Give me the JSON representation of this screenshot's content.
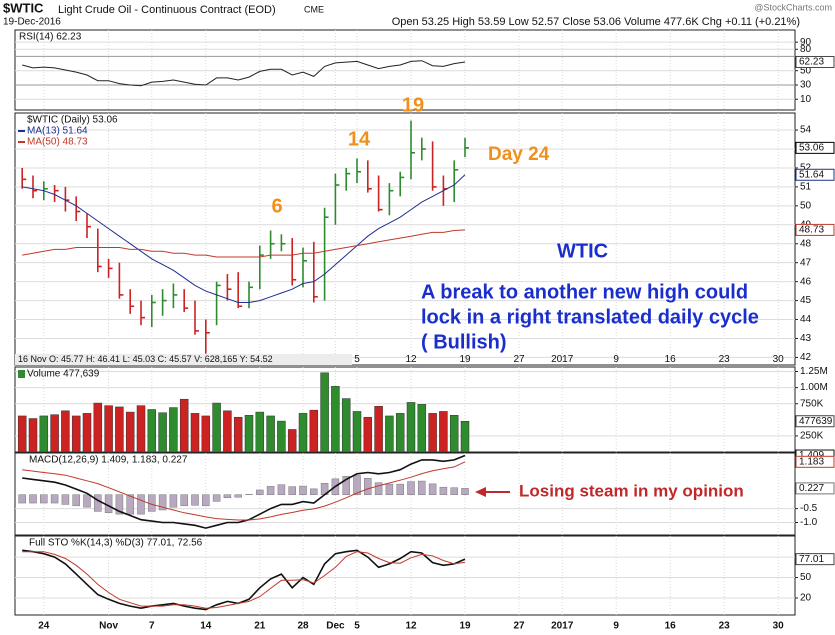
{
  "header": {
    "symbol": "$WTIC",
    "name": "Light Crude Oil - Continuous Contract (EOD)",
    "exchange": "CME",
    "date": "19-Dec-2016",
    "quote": "Open 53.25 High 53.59 Low 52.57 Close 53.06 Volume 477.6K Chg +0.11 (+0.21%)",
    "credit": "@StockCharts.com"
  },
  "x_axis": {
    "labels": [
      "24",
      "Nov",
      "7",
      "14",
      "21",
      "28",
      "Dec",
      "5",
      "12",
      "19",
      "27",
      "2017",
      "9",
      "16",
      "23",
      "30"
    ],
    "info": "16 Nov O: 45.77 H: 46.41 L: 45.03 C: 45.57 V: 628,165 Y: 54.52"
  },
  "annotations": {
    "cycle_19": "19",
    "cycle_14": "14",
    "cycle_6": "6",
    "day": "Day 24",
    "symbol": "WTIC",
    "comment": [
      "A break to another new high could",
      "lock in a right translated daily cycle",
      "( Bullish)"
    ],
    "macd_note": "Losing steam in my opinion"
  },
  "chart_data": [
    {
      "type": "line",
      "title": "RSI(14) 62.23",
      "color": "#222222",
      "values": [
        58,
        54,
        55,
        54,
        51,
        48,
        44,
        36,
        36,
        32,
        30,
        29,
        34,
        35,
        37,
        34,
        31,
        30,
        40,
        40,
        37,
        41,
        49,
        52,
        52,
        44,
        48,
        42,
        56,
        61,
        62,
        63,
        58,
        53,
        56,
        58,
        63,
        64,
        57,
        56,
        60,
        62.23
      ],
      "ylim": [
        -5,
        107
      ],
      "yticks": [
        10,
        30,
        50,
        80,
        90
      ],
      "grid": true
    },
    {
      "type": "ohlc",
      "title": "$WTIC (Daily) 53.06",
      "up_color": "#2e8b2e",
      "down_color": "#cc2222",
      "high": [
        52.0,
        51.6,
        51.3,
        51.1,
        51.0,
        50.5,
        49.6,
        48.8,
        47.2,
        47.0,
        45.6,
        45.0,
        45.3,
        45.6,
        45.9,
        45.6,
        45.0,
        44.0,
        46.0,
        46.4,
        46.5,
        46.0,
        47.9,
        48.7,
        48.5,
        48.3,
        47.8,
        48.1,
        49.9,
        51.7,
        52.0,
        52.5,
        52.4,
        51.6,
        51.2,
        51.8,
        54.5,
        53.6,
        53.4,
        51.6,
        52.4,
        53.59
      ],
      "low": [
        50.9,
        50.4,
        50.3,
        50.2,
        49.7,
        49.2,
        48.3,
        46.5,
        46.2,
        45.1,
        44.3,
        43.7,
        43.6,
        44.2,
        44.6,
        44.4,
        43.2,
        42.2,
        43.7,
        45.0,
        44.6,
        44.6,
        45.6,
        47.2,
        47.6,
        45.8,
        45.7,
        44.9,
        45.0,
        49.0,
        50.8,
        51.2,
        50.7,
        49.7,
        49.5,
        50.5,
        51.4,
        52.4,
        50.8,
        50.0,
        50.2,
        52.57
      ],
      "close": [
        51.4,
        50.8,
        50.9,
        50.8,
        50.3,
        49.7,
        48.9,
        46.8,
        46.7,
        45.3,
        44.7,
        44.1,
        44.9,
        45.0,
        45.3,
        44.6,
        43.4,
        43.3,
        45.8,
        45.6,
        44.7,
        45.7,
        47.4,
        48.0,
        48.0,
        46.1,
        47.1,
        45.2,
        49.4,
        51.1,
        51.7,
        51.8,
        50.9,
        49.8,
        50.8,
        51.5,
        52.8,
        53.0,
        51.0,
        50.9,
        51.9,
        53.06
      ],
      "series": [
        {
          "name": "MA(13) 51.64",
          "color": "#1f2f8f",
          "values": [
            51.0,
            50.9,
            50.8,
            50.6,
            50.3,
            50.0,
            49.6,
            49.2,
            48.8,
            48.4,
            48.0,
            47.6,
            47.2,
            46.9,
            46.6,
            46.2,
            45.8,
            45.5,
            45.3,
            45.1,
            44.9,
            44.9,
            45.0,
            45.2,
            45.4,
            45.6,
            45.9,
            46.0,
            46.4,
            46.9,
            47.4,
            47.9,
            48.4,
            48.8,
            49.1,
            49.4,
            49.8,
            50.2,
            50.5,
            50.8,
            51.1,
            51.64
          ]
        },
        {
          "name": "MA(50) 48.73",
          "color": "#c0392b",
          "values": [
            47.4,
            47.5,
            47.6,
            47.7,
            47.7,
            47.8,
            47.8,
            47.8,
            47.8,
            47.8,
            47.7,
            47.7,
            47.6,
            47.6,
            47.5,
            47.5,
            47.4,
            47.4,
            47.3,
            47.3,
            47.3,
            47.3,
            47.3,
            47.4,
            47.4,
            47.4,
            47.5,
            47.5,
            47.6,
            47.7,
            47.8,
            47.9,
            48.0,
            48.1,
            48.2,
            48.3,
            48.4,
            48.5,
            48.6,
            48.6,
            48.7,
            48.73
          ]
        }
      ],
      "ylim": [
        41.6,
        54.9
      ],
      "yticks": [
        42,
        43,
        44,
        45,
        46,
        47,
        48,
        49,
        50,
        51,
        52,
        53,
        54
      ],
      "grid": true
    },
    {
      "type": "volume",
      "title": "Volume 477,639",
      "values": [
        560000,
        520000,
        560000,
        580000,
        640000,
        560000,
        600000,
        760000,
        720000,
        700000,
        620000,
        720000,
        660000,
        610000,
        690000,
        820000,
        600000,
        560000,
        760000,
        640000,
        540000,
        570000,
        620000,
        560000,
        480000,
        350000,
        600000,
        650000,
        1230000,
        1020000,
        830000,
        630000,
        540000,
        710000,
        560000,
        600000,
        770000,
        740000,
        600000,
        630000,
        570000,
        477639
      ],
      "ylim": [
        0,
        1320000
      ],
      "yticks": [
        {
          "value": 250000,
          "label": "250K"
        },
        {
          "value": 750000,
          "label": "750K"
        },
        {
          "value": 1000000,
          "label": "1.00M"
        },
        {
          "value": 1250000,
          "label": "1.25M"
        }
      ],
      "grid": true
    },
    {
      "type": "macd",
      "title": "MACD(12,26,9) 1.409, 1.183, 0.227",
      "histogram_color": "#b8a8c0",
      "series": [
        {
          "color": "#111111",
          "values": [
            0.6,
            0.55,
            0.5,
            0.45,
            0.35,
            0.2,
            0.05,
            -0.2,
            -0.4,
            -0.6,
            -0.75,
            -0.9,
            -0.95,
            -1.0,
            -1.0,
            -1.05,
            -1.1,
            -1.2,
            -1.1,
            -1.0,
            -1.0,
            -0.9,
            -0.7,
            -0.5,
            -0.35,
            -0.35,
            -0.25,
            -0.3,
            0.0,
            0.3,
            0.55,
            0.75,
            0.8,
            0.75,
            0.8,
            0.9,
            1.1,
            1.25,
            1.25,
            1.2,
            1.25,
            1.409
          ]
        },
        {
          "color": "#c0392b",
          "values": [
            0.9,
            0.85,
            0.8,
            0.75,
            0.7,
            0.6,
            0.5,
            0.4,
            0.25,
            0.1,
            -0.05,
            -0.2,
            -0.35,
            -0.45,
            -0.55,
            -0.65,
            -0.72,
            -0.8,
            -0.86,
            -0.89,
            -0.91,
            -0.91,
            -0.87,
            -0.8,
            -0.71,
            -0.64,
            -0.56,
            -0.51,
            -0.41,
            -0.27,
            -0.11,
            0.06,
            0.21,
            0.32,
            0.42,
            0.52,
            0.63,
            0.76,
            0.86,
            0.93,
            1.0,
            1.183
          ]
        }
      ],
      "histogram": [
        -0.3,
        -0.3,
        -0.3,
        -0.3,
        -0.35,
        -0.4,
        -0.45,
        -0.6,
        -0.65,
        -0.7,
        -0.7,
        -0.7,
        -0.6,
        -0.55,
        -0.45,
        -0.4,
        -0.38,
        -0.4,
        -0.24,
        -0.11,
        -0.09,
        0.01,
        0.17,
        0.3,
        0.36,
        0.29,
        0.31,
        0.21,
        0.41,
        0.57,
        0.66,
        0.69,
        0.59,
        0.43,
        0.38,
        0.38,
        0.47,
        0.49,
        0.39,
        0.27,
        0.25,
        0.227
      ],
      "ylim": [
        -1.45,
        1.5
      ],
      "yticks": [
        {
          "value": -1,
          "label": "-1.0"
        },
        {
          "value": -0.5,
          "label": "-0.5"
        }
      ],
      "grid": true
    },
    {
      "type": "sto",
      "title": "Full STO %K(14,3) %D(3) 77.01, 72.56",
      "series": [
        {
          "color": "#111111",
          "values": [
            90,
            88,
            85,
            80,
            70,
            55,
            40,
            25,
            18,
            12,
            8,
            5,
            8,
            10,
            12,
            8,
            5,
            3,
            10,
            15,
            12,
            18,
            35,
            48,
            55,
            35,
            50,
            40,
            70,
            85,
            88,
            90,
            80,
            65,
            70,
            78,
            88,
            86,
            72,
            68,
            70,
            77.01
          ]
        },
        {
          "color": "#c0392b",
          "values": [
            88,
            88,
            88,
            84,
            78,
            68,
            55,
            40,
            28,
            18,
            13,
            8,
            8,
            8,
            10,
            10,
            8,
            5,
            6,
            9,
            12,
            15,
            22,
            34,
            46,
            46,
            47,
            42,
            53,
            65,
            81,
            88,
            86,
            78,
            72,
            71,
            79,
            84,
            82,
            75,
            70,
            72.56
          ]
        }
      ],
      "ylim": [
        -5,
        111
      ],
      "yticks": [
        20,
        50,
        80
      ],
      "grid": true
    }
  ]
}
